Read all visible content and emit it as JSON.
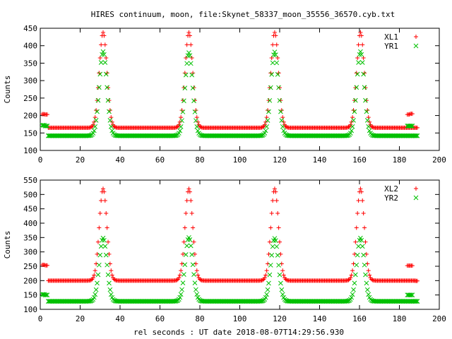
{
  "chart_data": {
    "title": "HIRES continuum, moon, file:Skynet_58337_moon_35556_36570.cyb.txt",
    "xlabel": "rel seconds : UT date 2018-08-07T14:29:56.930",
    "panels": [
      {
        "type": "scatter",
        "ylabel": "Counts",
        "xlim": [
          0,
          200
        ],
        "ylim": [
          100,
          450
        ],
        "xticks": [
          0,
          20,
          40,
          60,
          80,
          100,
          120,
          140,
          160,
          180,
          200
        ],
        "yticks": [
          100,
          150,
          200,
          250,
          300,
          350,
          400,
          450
        ],
        "legend_position": "top-right",
        "series": [
          {
            "name": "XL1",
            "color": "#ff0000",
            "marker": "plus",
            "baseline": 165,
            "peaks": [
              {
                "x": 31.5,
                "y": 438
              },
              {
                "x": 74.5,
                "y": 438
              },
              {
                "x": 117.5,
                "y": 438
              },
              {
                "x": 160.5,
                "y": 438
              }
            ],
            "peak_sigma": 1.9,
            "calibration": [
              {
                "x": 1.5,
                "y": 204
              },
              {
                "x": 3,
                "y": 203
              },
              {
                "x": 184.5,
                "y": 203
              },
              {
                "x": 186,
                "y": 205
              },
              {
                "x": 188.5,
                "y": 165
              }
            ],
            "x_range": [
              4,
              188
            ]
          },
          {
            "name": "YR1",
            "color": "#00c000",
            "marker": "cross",
            "baseline": 142,
            "peaks": [
              {
                "x": 31.5,
                "y": 383
              },
              {
                "x": 74.5,
                "y": 380
              },
              {
                "x": 117.5,
                "y": 382
              },
              {
                "x": 160.5,
                "y": 383
              }
            ],
            "peak_sigma": 1.9,
            "calibration": [
              {
                "x": 1.5,
                "y": 172
              },
              {
                "x": 3,
                "y": 170
              },
              {
                "x": 184.5,
                "y": 170
              },
              {
                "x": 186,
                "y": 170
              },
              {
                "x": 188.5,
                "y": 142
              }
            ],
            "x_range": [
              4,
              188
            ]
          }
        ]
      },
      {
        "type": "scatter",
        "ylabel": "Counts",
        "xlim": [
          0,
          200
        ],
        "ylim": [
          100,
          550
        ],
        "xticks": [
          0,
          20,
          40,
          60,
          80,
          100,
          120,
          140,
          160,
          180,
          200
        ],
        "yticks": [
          100,
          150,
          200,
          250,
          300,
          350,
          400,
          450,
          500,
          550
        ],
        "legend_position": "top-right",
        "series": [
          {
            "name": "XL2",
            "color": "#ff0000",
            "marker": "plus",
            "baseline": 200,
            "peaks": [
              {
                "x": 31.5,
                "y": 520
              },
              {
                "x": 74.5,
                "y": 520
              },
              {
                "x": 117.5,
                "y": 520
              },
              {
                "x": 160.5,
                "y": 520
              }
            ],
            "peak_sigma": 1.9,
            "calibration": [
              {
                "x": 1.5,
                "y": 255
              },
              {
                "x": 3,
                "y": 253
              },
              {
                "x": 184.5,
                "y": 252
              },
              {
                "x": 186,
                "y": 252
              },
              {
                "x": 188.5,
                "y": 199
              }
            ],
            "x_range": [
              4,
              188
            ]
          },
          {
            "name": "YR2",
            "color": "#00c000",
            "marker": "cross",
            "baseline": 128,
            "peaks": [
              {
                "x": 31.5,
                "y": 348
              },
              {
                "x": 74.5,
                "y": 350
              },
              {
                "x": 117.5,
                "y": 347
              },
              {
                "x": 160.5,
                "y": 348
              }
            ],
            "peak_sigma": 1.9,
            "calibration": [
              {
                "x": 1.5,
                "y": 152
              },
              {
                "x": 3,
                "y": 150
              },
              {
                "x": 184.5,
                "y": 150
              },
              {
                "x": 186,
                "y": 150
              },
              {
                "x": 188.5,
                "y": 128
              }
            ],
            "x_range": [
              4,
              188
            ]
          }
        ]
      }
    ]
  }
}
